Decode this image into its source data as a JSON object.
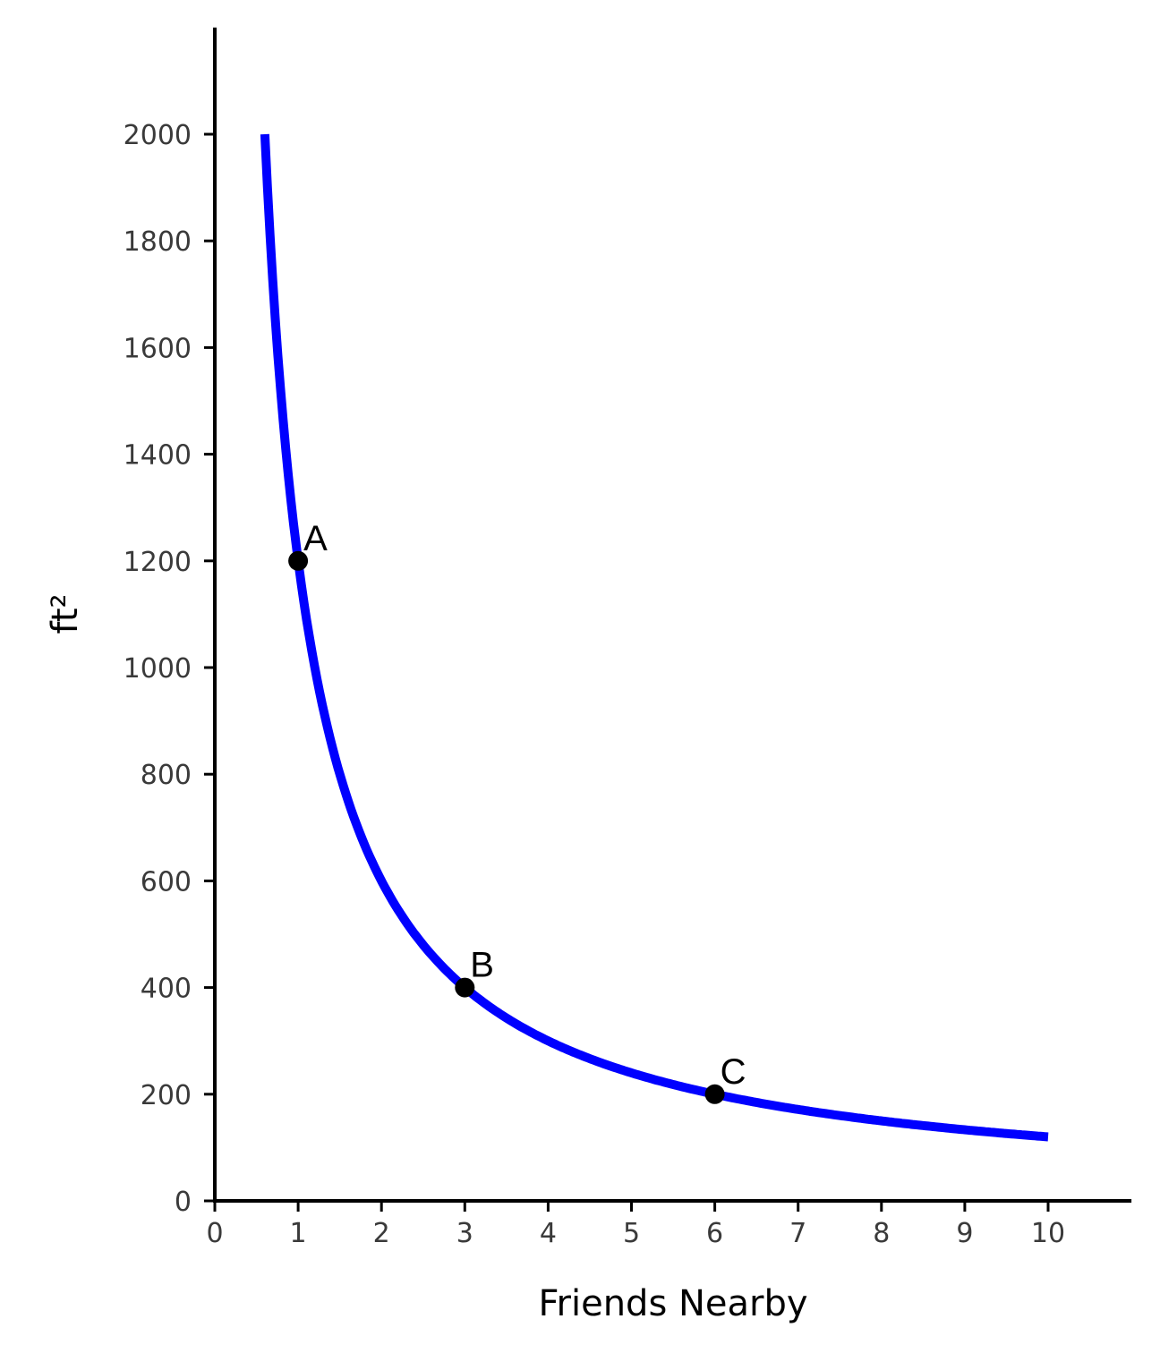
{
  "chart_data": {
    "type": "line",
    "title": "",
    "xlabel": "Friends Nearby",
    "ylabel": "ft²",
    "xlim": [
      0,
      11
    ],
    "ylim": [
      0,
      2200
    ],
    "xticks": [
      0,
      1,
      2,
      3,
      4,
      5,
      6,
      7,
      8,
      9,
      10
    ],
    "yticks": [
      0,
      200,
      400,
      600,
      800,
      1000,
      1200,
      1400,
      1600,
      1800,
      2000
    ],
    "grid": false,
    "series": [
      {
        "function": "y = 1200 / x",
        "x_range": [
          0.6,
          10
        ],
        "color": "#0000ff"
      }
    ],
    "points": [
      {
        "label": "A",
        "x": 1,
        "y": 1200
      },
      {
        "label": "B",
        "x": 3,
        "y": 400
      },
      {
        "label": "C",
        "x": 6,
        "y": 200
      }
    ],
    "point_color": "#000000"
  }
}
